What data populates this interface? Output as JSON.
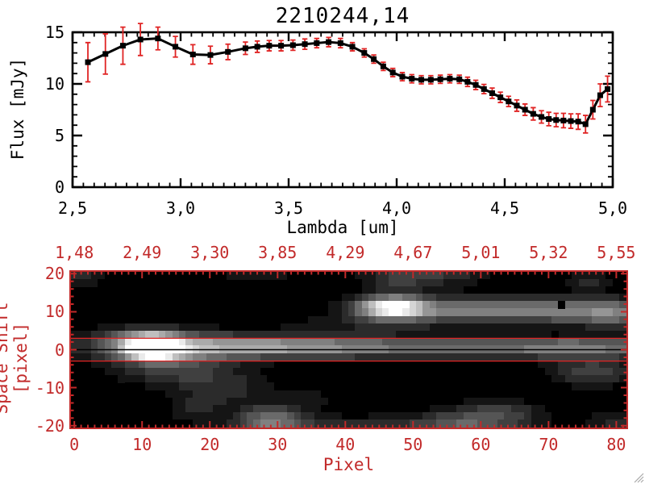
{
  "window": {
    "background": "#ffffff"
  },
  "chart_data": [
    {
      "type": "line",
      "title": "2210244,14",
      "xlabel": "Lambda [um]",
      "ylabel": "Flux [mJy]",
      "xlim": [
        2.5,
        5.0
      ],
      "ylim": [
        0,
        15
      ],
      "grid": false,
      "axis_color": "#000000",
      "x_ticks": {
        "values": [
          2.5,
          3.0,
          3.5,
          4.0,
          4.5,
          5.0
        ],
        "labels": [
          "2,5",
          "3,0",
          "3,5",
          "4,0",
          "4,5",
          "5,0"
        ],
        "minor_step": 0.05
      },
      "y_ticks": {
        "values": [
          0,
          5,
          10,
          15
        ],
        "labels": [
          "0",
          "5",
          "10",
          "15"
        ],
        "minor_step": 1
      },
      "series": [
        {
          "name": "spectrum",
          "marker": "filled-square",
          "line_color": "#000000",
          "error_color": "#e02424",
          "x": [
            2.571,
            2.652,
            2.733,
            2.814,
            2.895,
            2.976,
            3.057,
            3.138,
            3.219,
            3.3,
            3.355,
            3.41,
            3.465,
            3.52,
            3.575,
            3.63,
            3.685,
            3.74,
            3.795,
            3.85,
            3.894,
            3.938,
            3.982,
            4.026,
            4.07,
            4.114,
            4.158,
            4.202,
            4.246,
            4.29,
            4.328,
            4.366,
            4.404,
            4.442,
            4.48,
            4.518,
            4.556,
            4.594,
            4.632,
            4.67,
            4.704,
            4.738,
            4.772,
            4.806,
            4.84,
            4.874,
            4.908,
            4.942,
            4.976
          ],
          "y": [
            12.1,
            12.9,
            13.7,
            14.3,
            14.4,
            13.6,
            12.85,
            12.8,
            13.1,
            13.45,
            13.6,
            13.7,
            13.7,
            13.75,
            13.85,
            13.95,
            14.05,
            13.95,
            13.6,
            13.0,
            12.4,
            11.7,
            11.1,
            10.7,
            10.5,
            10.4,
            10.4,
            10.45,
            10.5,
            10.45,
            10.2,
            9.9,
            9.5,
            9.1,
            8.7,
            8.3,
            7.9,
            7.5,
            7.1,
            6.8,
            6.6,
            6.5,
            6.45,
            6.4,
            6.35,
            6.1,
            7.5,
            8.9,
            9.5
          ],
          "yerr": [
            1.9,
            1.95,
            1.8,
            1.55,
            1.1,
            1.0,
            0.95,
            0.85,
            0.75,
            0.6,
            0.55,
            0.5,
            0.5,
            0.5,
            0.5,
            0.45,
            0.45,
            0.45,
            0.4,
            0.4,
            0.4,
            0.4,
            0.4,
            0.4,
            0.4,
            0.4,
            0.4,
            0.4,
            0.4,
            0.4,
            0.45,
            0.45,
            0.45,
            0.5,
            0.5,
            0.5,
            0.55,
            0.55,
            0.6,
            0.6,
            0.65,
            0.65,
            0.7,
            0.7,
            0.75,
            0.85,
            0.9,
            1.1,
            1.25
          ]
        }
      ]
    },
    {
      "type": "heatmap",
      "xlabel": "Pixel",
      "ylabel": "Space Shift [pixel]",
      "axis_color": "#c22a2a",
      "xlim": [
        -0.5,
        81.5
      ],
      "ylim": [
        -20.5,
        20.5
      ],
      "x_ticks": {
        "values": [
          0,
          10,
          20,
          30,
          40,
          50,
          60,
          70,
          80
        ],
        "labels": [
          "0",
          "10",
          "20",
          "30",
          "40",
          "50",
          "60",
          "70",
          "80"
        ],
        "minor_step": 1
      },
      "y_ticks": {
        "values": [
          20,
          10,
          0,
          -10,
          -20
        ],
        "labels": [
          "20",
          "10",
          "0",
          "-10",
          "-20"
        ],
        "minor_step": 2
      },
      "top_axis": {
        "tick_positions": [
          0,
          10,
          20,
          30,
          40,
          50,
          60,
          70,
          80
        ],
        "labels": [
          "1,48",
          "2,49",
          "3,30",
          "3,85",
          "4,29",
          "4,67",
          "5,01",
          "5,32",
          "5,55"
        ]
      },
      "grid": {
        "cols": 82,
        "rows": 21
      },
      "palette": {
        "background": "#000000",
        "max": "#ffffff"
      },
      "overlay_lines": [
        {
          "y": 3,
          "color": "#e02424"
        },
        {
          "y": -3,
          "color": "#e02424"
        },
        {
          "y": 0,
          "color": "#000000"
        }
      ],
      "features": [
        {
          "x": 11.5,
          "y": 0.5,
          "sx": 2.6,
          "sy": 2.0,
          "a": 1.3
        },
        {
          "x": 13,
          "y": -0.5,
          "sx": 6.5,
          "sy": 4.0,
          "a": 0.26
        },
        {
          "x": 10,
          "y": 3.5,
          "sx": 5.0,
          "sy": 2.2,
          "a": 0.2
        },
        {
          "x": 24,
          "y": 0.8,
          "sx": 14,
          "sy": 2.1,
          "a": 0.5
        },
        {
          "x": 50,
          "y": 0.5,
          "sx": 22,
          "sy": 1.9,
          "a": 0.38
        },
        {
          "x": 76,
          "y": 0.5,
          "sx": 10,
          "sy": 1.9,
          "a": 0.35
        },
        {
          "x": 47,
          "y": 11,
          "sx": 3.5,
          "sy": 2.0,
          "a": 0.95
        },
        {
          "x": 58,
          "y": 10.5,
          "sx": 10,
          "sy": 2.3,
          "a": 0.42
        },
        {
          "x": 73,
          "y": 10,
          "sx": 10,
          "sy": 2.4,
          "a": 0.3
        },
        {
          "x": 80,
          "y": 9.5,
          "sx": 5,
          "sy": 2.6,
          "a": 0.3
        },
        {
          "x": 44,
          "y": 6.5,
          "sx": 10,
          "sy": 1.7,
          "a": 0.14
        },
        {
          "x": 16,
          "y": -6,
          "sx": 6,
          "sy": 3.0,
          "a": 0.2
        },
        {
          "x": 23,
          "y": -10.5,
          "sx": 5,
          "sy": 3.0,
          "a": 0.17
        },
        {
          "x": 18,
          "y": -15.5,
          "sx": 3,
          "sy": 2.5,
          "a": 0.17
        },
        {
          "x": 29,
          "y": -18.5,
          "sx": 3.5,
          "sy": 2.8,
          "a": 0.45
        },
        {
          "x": 45,
          "y": -20,
          "sx": 15,
          "sy": 1.8,
          "a": 0.2
        },
        {
          "x": 58,
          "y": -19,
          "sx": 5,
          "sy": 3.0,
          "a": 0.27
        },
        {
          "x": 64,
          "y": -16.5,
          "sx": 4,
          "sy": 2.2,
          "a": 0.2
        },
        {
          "x": 76.5,
          "y": -6,
          "sx": 4.5,
          "sy": 2.6,
          "a": 0.3
        },
        {
          "x": 80,
          "y": -19,
          "sx": 3,
          "sy": 2.0,
          "a": 0.18
        },
        {
          "x": 52,
          "y": 20,
          "sx": 6,
          "sy": 2.5,
          "a": 0.28
        },
        {
          "x": 27,
          "y": 20.5,
          "sx": 4,
          "sy": 1.5,
          "a": 0.2
        },
        {
          "x": 76,
          "y": 18,
          "sx": 2.2,
          "sy": 1.6,
          "a": 0.22
        },
        {
          "x": 1,
          "y": 19.5,
          "sx": 2.5,
          "sy": 2.2,
          "a": 0.2
        },
        {
          "x": 47,
          "y": 17,
          "sx": 3,
          "sy": 2.0,
          "a": 0.14
        },
        {
          "x": 35,
          "y": -13,
          "sx": 3,
          "sy": 2.0,
          "a": 0.1
        }
      ],
      "dark_cells": [
        {
          "x": 72,
          "y": 11.5
        },
        {
          "x": 71,
          "y": 3.5
        }
      ]
    }
  ],
  "decorations": {
    "resize_grip_color": "#aaaaaa"
  }
}
